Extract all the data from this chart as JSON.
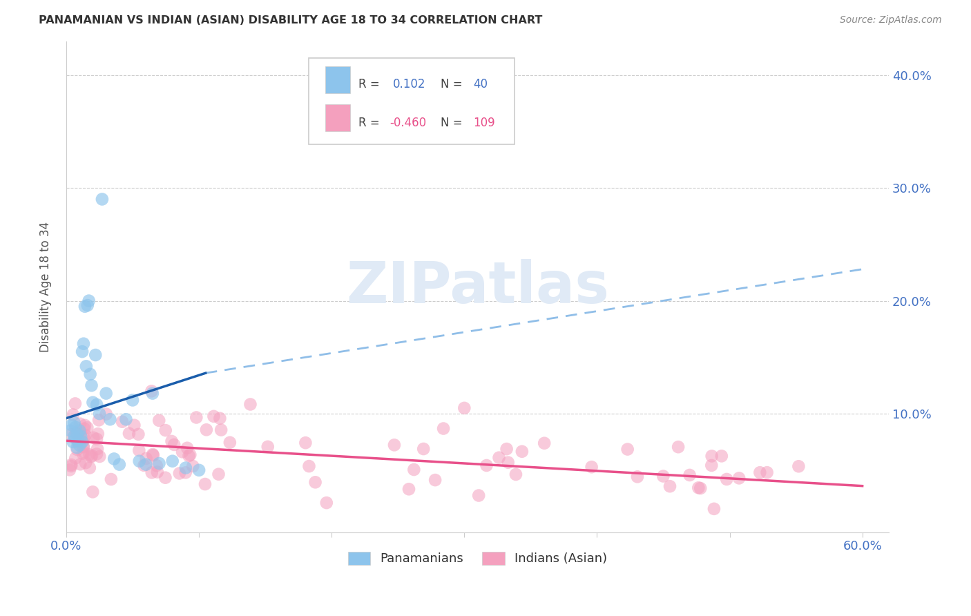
{
  "title": "PANAMANIAN VS INDIAN (ASIAN) DISABILITY AGE 18 TO 34 CORRELATION CHART",
  "source": "Source: ZipAtlas.com",
  "ylabel": "Disability Age 18 to 34",
  "xlim": [
    0.0,
    0.62
  ],
  "ylim": [
    -0.005,
    0.43
  ],
  "pan_r": 0.102,
  "pan_n": 40,
  "ind_r": -0.46,
  "ind_n": 109,
  "pan_color": "#8DC4EC",
  "ind_color": "#F4A0BE",
  "pan_line_color": "#1A5DAB",
  "pan_dash_color": "#90BEE8",
  "ind_line_color": "#E8508A",
  "watermark_color": "#E0EAF6",
  "grid_color": "#CCCCCC",
  "title_color": "#333333",
  "source_color": "#888888",
  "tick_color": "#4472C4",
  "ylabel_color": "#555555"
}
